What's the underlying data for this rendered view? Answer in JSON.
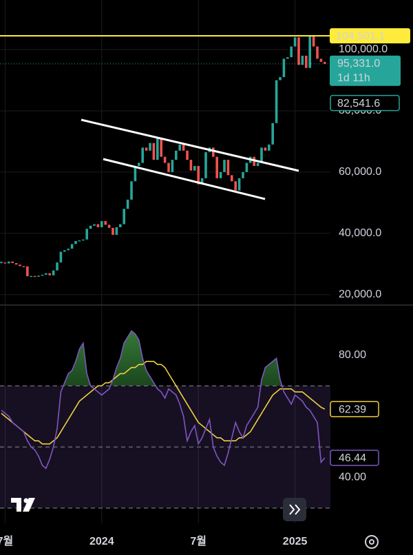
{
  "chart_data": [
    {
      "type": "candlestick",
      "categories": [
        null,
        "7월",
        null,
        null,
        null,
        null,
        null,
        null,
        null,
        null,
        null,
        null,
        null,
        null,
        null,
        null,
        null,
        null,
        null,
        null,
        null,
        null,
        null,
        null,
        null,
        null,
        null,
        "2024",
        null,
        null,
        null,
        null,
        null,
        null,
        null,
        null,
        null,
        null,
        null,
        null,
        null,
        null,
        null,
        null,
        null,
        null,
        null,
        null,
        null,
        null,
        null,
        null,
        null,
        "7월",
        null,
        null,
        null,
        null,
        null,
        null,
        null,
        null,
        null,
        null,
        null,
        null,
        null,
        null,
        null,
        null,
        null,
        null,
        null,
        null,
        null,
        null,
        null,
        null,
        null,
        "2025",
        null,
        null,
        null,
        null,
        null,
        null,
        null,
        null
      ],
      "values": [
        30500,
        30200,
        30800,
        30300,
        29800,
        29300,
        29200,
        26000,
        26100,
        25900,
        26200,
        26500,
        27000,
        26300,
        27900,
        30500,
        34000,
        34500,
        35000,
        36500,
        37500,
        37700,
        38000,
        41500,
        42500,
        43000,
        42000,
        44000,
        42800,
        41800,
        39500,
        42000,
        43000,
        48000,
        51000,
        57000,
        62000,
        63000,
        68000,
        67000,
        69500,
        64000,
        71000,
        65000,
        63000,
        60000,
        64000,
        67000,
        69000,
        67000,
        64000,
        60500,
        62000,
        56000,
        58000,
        66500,
        68000,
        65000,
        58000,
        60000,
        64000,
        59000,
        57000,
        54000,
        58000,
        60000,
        63000,
        65000,
        62000,
        63000,
        68000,
        67000,
        69000,
        76000,
        90000,
        91000,
        97000,
        97500,
        101000,
        104000,
        95000,
        98000,
        94000,
        104500,
        101000,
        97000,
        96000,
        95331
      ],
      "up_color": "#26a69a",
      "down_color": "#ef5350",
      "ylim": [
        16600,
        116180
      ],
      "yticks": [
        {
          "value": 20000,
          "label": "20,000.0"
        },
        {
          "value": 40000,
          "label": "40,000.0"
        },
        {
          "value": 60000,
          "label": "60,000.0"
        },
        {
          "value": 80000,
          "label": "80,000.0"
        },
        {
          "value": 100000,
          "label": "100,000.0"
        }
      ],
      "grid": true,
      "markers": [
        {
          "value": 104501.1,
          "label": "104,501.1",
          "color": "#ffeb3b",
          "style": "solid"
        },
        {
          "value": 95331,
          "label": "95,331.0",
          "countdown": "1d 11h",
          "color": "#26a69a",
          "style": "dotted"
        },
        {
          "value": 82541.6,
          "label": "82,541.6",
          "color": "#26a69a",
          "style": "outline"
        }
      ]
    },
    {
      "type": "line",
      "series": [
        {
          "color": "#7e57c2",
          "last_label": "46.44",
          "values": [
            62,
            61,
            60,
            58,
            57,
            56,
            55,
            52,
            50,
            49,
            47,
            44,
            43,
            46,
            50,
            56,
            68,
            71,
            74,
            75,
            78,
            82,
            84,
            74,
            70,
            69,
            68,
            67,
            68,
            69,
            72,
            76,
            79,
            84,
            86,
            88,
            87,
            85,
            79,
            75,
            73,
            71,
            69,
            68,
            66,
            69,
            68,
            67,
            64,
            60,
            52,
            55,
            57,
            51,
            53,
            56,
            59,
            50,
            47,
            45,
            44,
            48,
            53,
            58,
            55,
            53,
            57,
            59,
            61,
            63,
            72,
            76,
            77,
            78,
            79,
            72,
            68,
            66,
            64,
            67,
            66,
            65,
            63,
            62,
            60,
            58,
            45,
            46.44
          ]
        },
        {
          "color": "#f0d040",
          "last_label": "62.39",
          "values": [
            61,
            60,
            59,
            58,
            57,
            56,
            55,
            54,
            53,
            52,
            52,
            51,
            51,
            51,
            52,
            53,
            55,
            57,
            59,
            61,
            63,
            65,
            66,
            67,
            68,
            69,
            70,
            70,
            71,
            71,
            72,
            73,
            74,
            74,
            75,
            76,
            76,
            77,
            77,
            78,
            78,
            78,
            77,
            77,
            76,
            74,
            72,
            70,
            68,
            66,
            64,
            62,
            60,
            58,
            57,
            56,
            55,
            54,
            53,
            53,
            52,
            52,
            52,
            52,
            53,
            53,
            54,
            55,
            57,
            59,
            61,
            63,
            65,
            67,
            68,
            69,
            69,
            69,
            69,
            68,
            68,
            68,
            67,
            66,
            65,
            64,
            63,
            62.39
          ]
        }
      ],
      "ylim": [
        25,
        96
      ],
      "yticks": [
        {
          "value": 40,
          "label": "40.00"
        },
        {
          "value": 80,
          "label": "80.00"
        }
      ],
      "levels": [
        70,
        50,
        30
      ],
      "band_color": "#7e57c2",
      "overbought_color": "#2e7d32"
    }
  ]
}
